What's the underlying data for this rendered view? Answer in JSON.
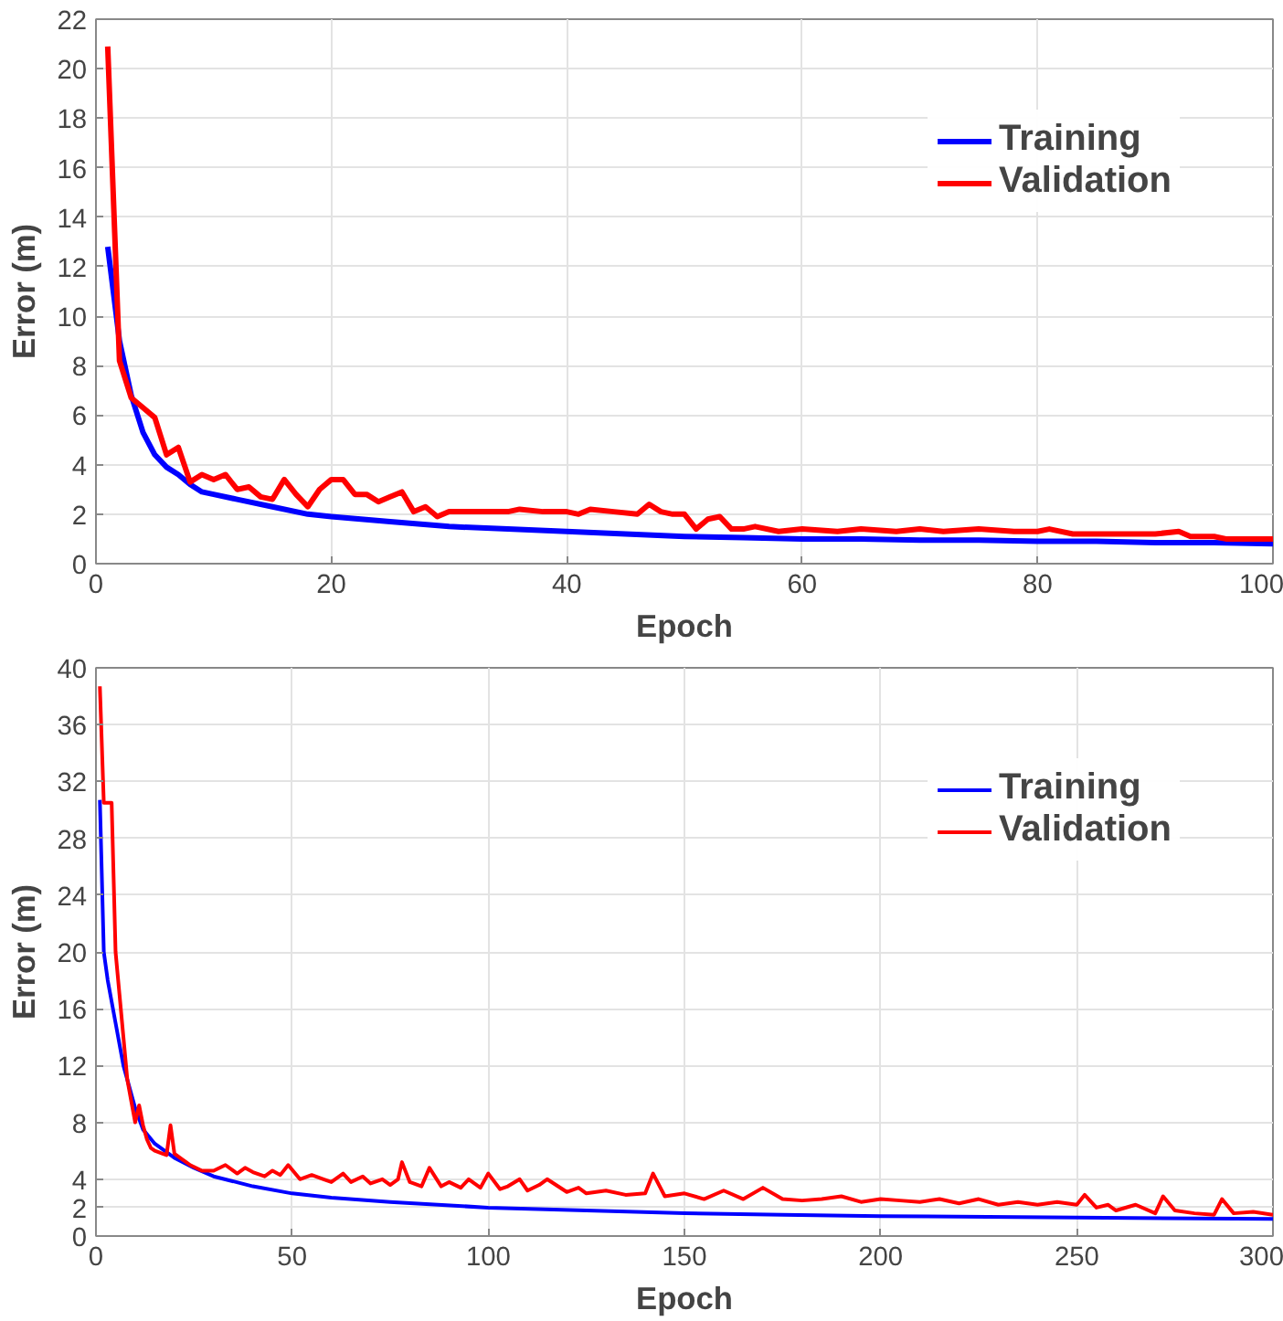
{
  "chart_data": [
    {
      "type": "line",
      "xlabel": "Epoch",
      "ylabel": "Error (m)",
      "xlim": [
        0,
        100
      ],
      "ylim": [
        0,
        22
      ],
      "xticks": [
        0,
        20,
        40,
        60,
        80,
        100
      ],
      "yticks": [
        0,
        2,
        4,
        6,
        8,
        10,
        12,
        14,
        16,
        18,
        20,
        22
      ],
      "grid": true,
      "legend": "top right",
      "series": [
        {
          "name": "Training",
          "color": "#0000ff",
          "x": [
            1,
            2,
            3,
            4,
            5,
            6,
            7,
            8,
            9,
            10,
            12,
            15,
            18,
            20,
            25,
            30,
            35,
            40,
            45,
            50,
            55,
            60,
            65,
            70,
            75,
            80,
            85,
            90,
            95,
            100
          ],
          "values": [
            12.8,
            9.0,
            6.8,
            5.3,
            4.4,
            3.9,
            3.6,
            3.2,
            2.9,
            2.8,
            2.6,
            2.3,
            2.0,
            1.9,
            1.7,
            1.5,
            1.4,
            1.3,
            1.2,
            1.1,
            1.05,
            1.0,
            1.0,
            0.95,
            0.95,
            0.9,
            0.9,
            0.85,
            0.85,
            0.8
          ]
        },
        {
          "name": "Validation",
          "color": "#ff0000",
          "x": [
            1,
            2,
            3,
            4,
            5,
            6,
            7,
            8,
            9,
            10,
            11,
            12,
            13,
            14,
            15,
            16,
            17,
            18,
            19,
            20,
            21,
            22,
            23,
            24,
            25,
            26,
            27,
            28,
            29,
            30,
            33,
            35,
            36,
            38,
            40,
            41,
            42,
            44,
            46,
            47,
            48,
            49,
            50,
            51,
            52,
            53,
            54,
            55,
            56,
            58,
            60,
            63,
            65,
            68,
            70,
            72,
            75,
            78,
            80,
            81,
            83,
            85,
            88,
            90,
            92,
            93,
            95,
            96,
            98,
            100
          ],
          "values": [
            20.9,
            8.2,
            6.7,
            6.3,
            5.9,
            4.4,
            4.7,
            3.3,
            3.6,
            3.4,
            3.6,
            3.0,
            3.1,
            2.7,
            2.6,
            3.4,
            2.8,
            2.3,
            3.0,
            3.4,
            3.4,
            2.8,
            2.8,
            2.5,
            2.7,
            2.9,
            2.1,
            2.3,
            1.9,
            2.1,
            2.1,
            2.1,
            2.2,
            2.1,
            2.1,
            2.0,
            2.2,
            2.1,
            2.0,
            2.4,
            2.1,
            2.0,
            2.0,
            1.4,
            1.8,
            1.9,
            1.4,
            1.4,
            1.5,
            1.3,
            1.4,
            1.3,
            1.4,
            1.3,
            1.4,
            1.3,
            1.4,
            1.3,
            1.3,
            1.4,
            1.2,
            1.2,
            1.2,
            1.2,
            1.3,
            1.1,
            1.1,
            1.0,
            1.0,
            1.0
          ]
        }
      ]
    },
    {
      "type": "line",
      "xlabel": "Epoch",
      "ylabel": "Error (m)",
      "xlim": [
        0,
        300
      ],
      "ylim": [
        0,
        40
      ],
      "xticks": [
        0,
        50,
        100,
        150,
        200,
        250,
        300
      ],
      "yticks": [
        0,
        2,
        4,
        8,
        12,
        16,
        20,
        24,
        28,
        32,
        36,
        40
      ],
      "grid": true,
      "legend": "top right",
      "series": [
        {
          "name": "Training",
          "color": "#0000ff",
          "x": [
            1,
            2,
            3,
            5,
            7,
            10,
            12,
            15,
            20,
            25,
            30,
            40,
            50,
            60,
            75,
            100,
            125,
            150,
            175,
            200,
            250,
            300
          ],
          "values": [
            30.7,
            20.0,
            18.0,
            15.0,
            12.0,
            9.0,
            7.5,
            6.5,
            5.5,
            4.8,
            4.2,
            3.5,
            3.0,
            2.7,
            2.4,
            2.0,
            1.8,
            1.6,
            1.5,
            1.4,
            1.3,
            1.2
          ]
        },
        {
          "name": "Validation",
          "color": "#ff0000",
          "x": [
            1,
            2,
            3,
            4,
            5,
            6,
            7,
            8,
            9,
            10,
            11,
            12,
            13,
            14,
            15,
            17,
            18,
            19,
            20,
            22,
            24,
            27,
            30,
            33,
            36,
            38,
            40,
            43,
            45,
            47,
            49,
            52,
            55,
            58,
            60,
            63,
            65,
            68,
            70,
            73,
            75,
            77,
            78,
            80,
            83,
            85,
            88,
            90,
            93,
            95,
            98,
            100,
            103,
            105,
            108,
            110,
            113,
            115,
            120,
            123,
            125,
            130,
            135,
            140,
            142,
            145,
            150,
            155,
            160,
            165,
            170,
            175,
            180,
            185,
            190,
            195,
            200,
            205,
            210,
            215,
            220,
            225,
            230,
            235,
            240,
            245,
            250,
            252,
            255,
            258,
            260,
            265,
            270,
            272,
            275,
            280,
            285,
            287,
            290,
            295,
            300
          ],
          "values": [
            38.7,
            30.5,
            30.5,
            30.5,
            20.0,
            17.0,
            14.0,
            11.0,
            9.5,
            8.0,
            9.2,
            7.8,
            6.8,
            6.2,
            6.0,
            5.8,
            5.7,
            7.8,
            5.8,
            5.4,
            5.0,
            4.6,
            4.6,
            5.0,
            4.4,
            4.8,
            4.5,
            4.2,
            4.6,
            4.3,
            5.0,
            4.0,
            4.3,
            4.0,
            3.8,
            4.4,
            3.8,
            4.2,
            3.7,
            4.0,
            3.6,
            4.0,
            5.2,
            3.8,
            3.5,
            4.8,
            3.5,
            3.8,
            3.4,
            4.0,
            3.4,
            4.4,
            3.3,
            3.5,
            4.0,
            3.2,
            3.6,
            4.0,
            3.1,
            3.4,
            3.0,
            3.2,
            2.9,
            3.0,
            4.4,
            2.8,
            3.0,
            2.6,
            3.2,
            2.6,
            3.4,
            2.6,
            2.5,
            2.6,
            2.8,
            2.4,
            2.6,
            2.5,
            2.4,
            2.6,
            2.3,
            2.6,
            2.2,
            2.4,
            2.2,
            2.4,
            2.2,
            2.9,
            2.0,
            2.2,
            1.8,
            2.2,
            1.6,
            2.8,
            1.8,
            1.6,
            1.5,
            2.6,
            1.6,
            1.7,
            1.5
          ]
        }
      ]
    }
  ]
}
